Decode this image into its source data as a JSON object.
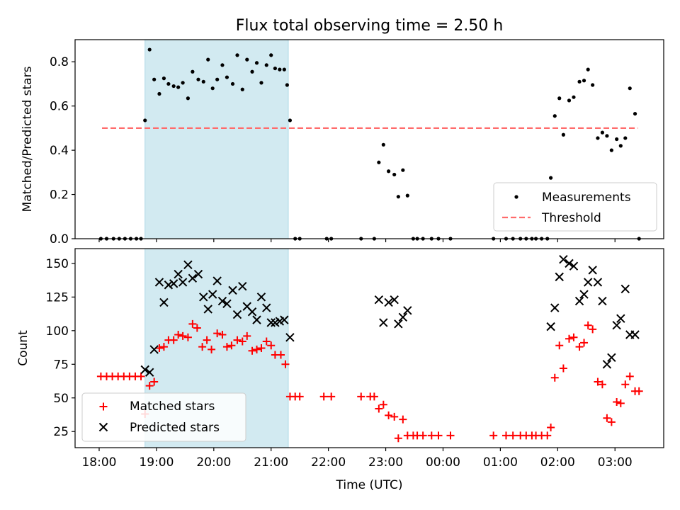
{
  "title": "Flux total observing time = 2.50 h",
  "colors": {
    "span": "#add8e6",
    "measurements": "#000000",
    "threshold": "#ff6b6b",
    "matched": "#ff0000",
    "predicted": "#000000"
  },
  "chart_data": [
    {
      "type": "scatter",
      "ylabel": "Matched/Predicted stars",
      "xlim": [
        17.58,
        27.85
      ],
      "ylim": [
        0,
        0.9
      ],
      "yticks": [
        0.0,
        0.2,
        0.4,
        0.6,
        0.8
      ],
      "ytick_labels": [
        "0.0",
        "0.2",
        "0.4",
        "0.6",
        "0.8"
      ],
      "legend": {
        "position": "lower right",
        "entries": [
          "Measurements",
          "Threshold"
        ]
      },
      "highlight_span": [
        18.8,
        21.3
      ],
      "threshold": {
        "name": "Threshold",
        "value": 0.5,
        "x_range": [
          18.05,
          27.4
        ],
        "style": "dashed"
      },
      "series": [
        {
          "name": "Measurements",
          "marker": "dot",
          "points": [
            [
              18.03,
              0
            ],
            [
              18.13,
              0
            ],
            [
              18.25,
              0
            ],
            [
              18.35,
              0
            ],
            [
              18.45,
              0
            ],
            [
              18.55,
              0
            ],
            [
              18.65,
              0
            ],
            [
              18.73,
              0
            ],
            [
              18.8,
              0.535
            ],
            [
              18.88,
              0.855
            ],
            [
              18.96,
              0.72
            ],
            [
              19.05,
              0.655
            ],
            [
              19.13,
              0.725
            ],
            [
              19.21,
              0.7
            ],
            [
              19.3,
              0.69
            ],
            [
              19.38,
              0.685
            ],
            [
              19.46,
              0.705
            ],
            [
              19.55,
              0.635
            ],
            [
              19.63,
              0.755
            ],
            [
              19.73,
              0.72
            ],
            [
              19.82,
              0.71
            ],
            [
              19.9,
              0.81
            ],
            [
              19.98,
              0.68
            ],
            [
              20.06,
              0.72
            ],
            [
              20.15,
              0.785
            ],
            [
              20.23,
              0.73
            ],
            [
              20.33,
              0.7
            ],
            [
              20.41,
              0.83
            ],
            [
              20.5,
              0.675
            ],
            [
              20.58,
              0.81
            ],
            [
              20.67,
              0.755
            ],
            [
              20.75,
              0.795
            ],
            [
              20.83,
              0.705
            ],
            [
              20.92,
              0.785
            ],
            [
              21.0,
              0.83
            ],
            [
              21.07,
              0.77
            ],
            [
              21.15,
              0.765
            ],
            [
              21.23,
              0.765
            ],
            [
              21.28,
              0.695
            ],
            [
              21.33,
              0.535
            ],
            [
              21.42,
              0
            ],
            [
              21.5,
              0
            ],
            [
              21.97,
              0
            ],
            [
              22.05,
              0
            ],
            [
              22.57,
              0
            ],
            [
              22.8,
              0
            ],
            [
              22.88,
              0.345
            ],
            [
              22.96,
              0.425
            ],
            [
              23.05,
              0.305
            ],
            [
              23.15,
              0.29
            ],
            [
              23.22,
              0.19
            ],
            [
              23.3,
              0.31
            ],
            [
              23.38,
              0.195
            ],
            [
              23.48,
              0
            ],
            [
              23.55,
              0
            ],
            [
              23.65,
              0
            ],
            [
              23.8,
              0
            ],
            [
              23.92,
              0
            ],
            [
              24.13,
              0
            ],
            [
              24.88,
              0
            ],
            [
              25.1,
              0
            ],
            [
              25.22,
              0
            ],
            [
              25.35,
              0
            ],
            [
              25.45,
              0
            ],
            [
              25.55,
              0
            ],
            [
              25.62,
              0
            ],
            [
              25.72,
              0
            ],
            [
              25.82,
              0
            ],
            [
              25.88,
              0.275
            ],
            [
              25.95,
              0.555
            ],
            [
              26.03,
              0.635
            ],
            [
              26.1,
              0.47
            ],
            [
              26.2,
              0.625
            ],
            [
              26.28,
              0.64
            ],
            [
              26.38,
              0.71
            ],
            [
              26.46,
              0.715
            ],
            [
              26.53,
              0.765
            ],
            [
              26.61,
              0.695
            ],
            [
              26.7,
              0.455
            ],
            [
              26.78,
              0.48
            ],
            [
              26.86,
              0.465
            ],
            [
              26.94,
              0.4
            ],
            [
              27.03,
              0.45
            ],
            [
              27.1,
              0.42
            ],
            [
              27.18,
              0.455
            ],
            [
              27.26,
              0.68
            ],
            [
              27.35,
              0.565
            ],
            [
              27.42,
              0
            ]
          ]
        }
      ]
    },
    {
      "type": "scatter",
      "xlabel": "Time (UTC)",
      "ylabel": "Count",
      "xlim": [
        17.58,
        27.85
      ],
      "ylim": [
        13,
        161
      ],
      "yticks": [
        25,
        50,
        75,
        100,
        125,
        150
      ],
      "ytick_labels": [
        "25",
        "50",
        "75",
        "100",
        "125",
        "150"
      ],
      "xticks": [
        18,
        19,
        20,
        21,
        22,
        23,
        24,
        25,
        26,
        27
      ],
      "xtick_labels": [
        "18:00",
        "19:00",
        "20:00",
        "21:00",
        "22:00",
        "23:00",
        "00:00",
        "01:00",
        "02:00",
        "03:00"
      ],
      "legend": {
        "position": "lower left",
        "entries": [
          "Matched stars",
          "Predicted stars"
        ]
      },
      "highlight_span": [
        18.8,
        21.3
      ],
      "series": [
        {
          "name": "Matched stars",
          "marker": "plus",
          "points": [
            [
              18.03,
              66
            ],
            [
              18.13,
              66
            ],
            [
              18.23,
              66
            ],
            [
              18.33,
              66
            ],
            [
              18.43,
              66
            ],
            [
              18.53,
              66
            ],
            [
              18.63,
              66
            ],
            [
              18.73,
              66
            ],
            [
              18.8,
              38
            ],
            [
              18.88,
              59
            ],
            [
              18.96,
              62
            ],
            [
              19.05,
              87
            ],
            [
              19.13,
              88
            ],
            [
              19.21,
              93
            ],
            [
              19.3,
              93
            ],
            [
              19.38,
              97
            ],
            [
              19.46,
              96
            ],
            [
              19.55,
              95
            ],
            [
              19.63,
              105
            ],
            [
              19.71,
              102
            ],
            [
              19.8,
              88
            ],
            [
              19.88,
              93
            ],
            [
              19.96,
              86
            ],
            [
              20.06,
              98
            ],
            [
              20.15,
              97
            ],
            [
              20.23,
              88
            ],
            [
              20.31,
              89
            ],
            [
              20.41,
              93
            ],
            [
              20.5,
              92
            ],
            [
              20.58,
              96
            ],
            [
              20.67,
              85
            ],
            [
              20.75,
              86
            ],
            [
              20.83,
              87
            ],
            [
              20.92,
              92
            ],
            [
              21.0,
              89
            ],
            [
              21.07,
              82
            ],
            [
              21.17,
              82
            ],
            [
              21.25,
              75
            ],
            [
              21.33,
              51
            ],
            [
              21.42,
              51
            ],
            [
              21.5,
              51
            ],
            [
              21.92,
              51
            ],
            [
              22.05,
              51
            ],
            [
              22.57,
              51
            ],
            [
              22.73,
              51
            ],
            [
              22.8,
              51
            ],
            [
              22.88,
              42
            ],
            [
              22.96,
              45
            ],
            [
              23.05,
              37
            ],
            [
              23.15,
              36
            ],
            [
              23.22,
              20
            ],
            [
              23.3,
              34
            ],
            [
              23.38,
              22
            ],
            [
              23.48,
              22
            ],
            [
              23.55,
              22
            ],
            [
              23.65,
              22
            ],
            [
              23.8,
              22
            ],
            [
              23.92,
              22
            ],
            [
              24.13,
              22
            ],
            [
              24.88,
              22
            ],
            [
              25.1,
              22
            ],
            [
              25.22,
              22
            ],
            [
              25.35,
              22
            ],
            [
              25.45,
              22
            ],
            [
              25.55,
              22
            ],
            [
              25.62,
              22
            ],
            [
              25.72,
              22
            ],
            [
              25.82,
              22
            ],
            [
              25.88,
              28
            ],
            [
              25.95,
              65
            ],
            [
              26.03,
              89
            ],
            [
              26.1,
              72
            ],
            [
              26.2,
              94
            ],
            [
              26.28,
              95
            ],
            [
              26.38,
              88
            ],
            [
              26.46,
              91
            ],
            [
              26.53,
              104
            ],
            [
              26.61,
              101
            ],
            [
              26.7,
              62
            ],
            [
              26.78,
              60
            ],
            [
              26.86,
              35
            ],
            [
              26.94,
              32
            ],
            [
              27.03,
              47
            ],
            [
              27.1,
              46
            ],
            [
              27.18,
              60
            ],
            [
              27.26,
              66
            ],
            [
              27.35,
              55
            ],
            [
              27.42,
              55
            ]
          ]
        },
        {
          "name": "Predicted stars",
          "marker": "x",
          "points": [
            [
              18.8,
              71
            ],
            [
              18.88,
              69
            ],
            [
              18.96,
              86
            ],
            [
              19.05,
              136
            ],
            [
              19.13,
              121
            ],
            [
              19.21,
              134
            ],
            [
              19.3,
              135
            ],
            [
              19.38,
              142
            ],
            [
              19.46,
              136
            ],
            [
              19.55,
              149
            ],
            [
              19.63,
              139
            ],
            [
              19.73,
              142
            ],
            [
              19.82,
              125
            ],
            [
              19.9,
              116
            ],
            [
              19.98,
              127
            ],
            [
              20.06,
              137
            ],
            [
              20.15,
              122
            ],
            [
              20.23,
              120
            ],
            [
              20.33,
              130
            ],
            [
              20.41,
              112
            ],
            [
              20.5,
              133
            ],
            [
              20.58,
              118
            ],
            [
              20.67,
              114
            ],
            [
              20.75,
              108
            ],
            [
              20.83,
              125
            ],
            [
              20.92,
              117
            ],
            [
              21.0,
              106
            ],
            [
              21.07,
              106
            ],
            [
              21.15,
              107
            ],
            [
              21.23,
              108
            ],
            [
              21.33,
              95
            ],
            [
              22.88,
              123
            ],
            [
              22.96,
              106
            ],
            [
              23.05,
              121
            ],
            [
              23.15,
              123
            ],
            [
              23.22,
              105
            ],
            [
              23.3,
              110
            ],
            [
              23.38,
              115
            ],
            [
              25.88,
              103
            ],
            [
              25.95,
              117
            ],
            [
              26.03,
              140
            ],
            [
              26.1,
              153
            ],
            [
              26.2,
              150
            ],
            [
              26.28,
              148
            ],
            [
              26.38,
              122
            ],
            [
              26.46,
              127
            ],
            [
              26.53,
              136
            ],
            [
              26.61,
              145
            ],
            [
              26.7,
              136
            ],
            [
              26.78,
              122
            ],
            [
              26.86,
              75
            ],
            [
              26.94,
              80
            ],
            [
              27.03,
              104
            ],
            [
              27.1,
              109
            ],
            [
              27.18,
              131
            ],
            [
              27.26,
              97
            ],
            [
              27.35,
              97
            ]
          ]
        }
      ]
    }
  ]
}
